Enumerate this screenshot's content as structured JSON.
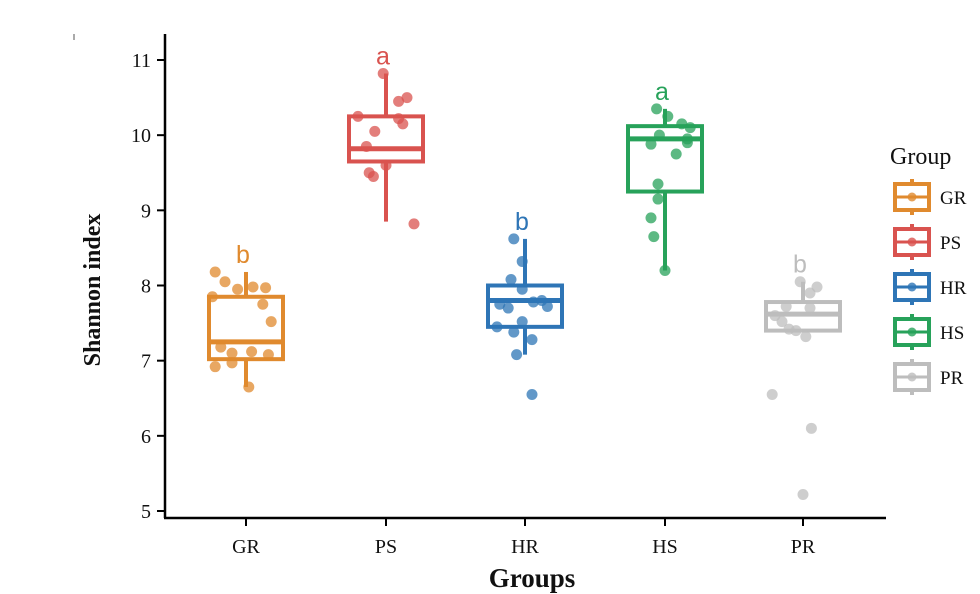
{
  "chart_data": {
    "type": "box",
    "xlabel": "Groups",
    "ylabel": "Shannon index",
    "ylim": [
      4.9,
      11.4
    ],
    "yticks": [
      5,
      6,
      7,
      8,
      9,
      10,
      11
    ],
    "categories": [
      "GR",
      "PS",
      "HR",
      "HS",
      "PR"
    ],
    "legend_title": "Group",
    "legend_position": "right",
    "groups": [
      {
        "name": "GR",
        "color": "#E08A2E",
        "whisker_low": 6.65,
        "q1": 7.02,
        "median": 7.25,
        "q3": 7.85,
        "whisker_high": 8.18,
        "label": "b",
        "points": [
          [
            -0.22,
            8.18
          ],
          [
            -0.15,
            8.05
          ],
          [
            -0.06,
            7.95
          ],
          [
            0.05,
            7.98
          ],
          [
            0.14,
            7.97
          ],
          [
            -0.24,
            7.85
          ],
          [
            0.12,
            7.75
          ],
          [
            0.18,
            7.52
          ],
          [
            -0.18,
            7.18
          ],
          [
            -0.1,
            7.1
          ],
          [
            0.04,
            7.12
          ],
          [
            0.16,
            7.08
          ],
          [
            -0.22,
            6.92
          ],
          [
            -0.1,
            6.97
          ],
          [
            0.02,
            6.65
          ]
        ]
      },
      {
        "name": "PS",
        "color": "#D9534F",
        "whisker_low": 8.85,
        "q1": 9.65,
        "median": 9.82,
        "q3": 10.25,
        "whisker_high": 10.82,
        "label": "a",
        "points": [
          [
            -0.02,
            10.82
          ],
          [
            0.15,
            10.5
          ],
          [
            0.09,
            10.45
          ],
          [
            -0.2,
            10.25
          ],
          [
            0.09,
            10.22
          ],
          [
            0.12,
            10.15
          ],
          [
            -0.08,
            10.05
          ],
          [
            -0.14,
            9.85
          ],
          [
            0.0,
            9.6
          ],
          [
            -0.12,
            9.5
          ],
          [
            -0.09,
            9.45
          ],
          [
            0.2,
            8.82
          ]
        ]
      },
      {
        "name": "HR",
        "color": "#2E75B6",
        "whisker_low": 7.08,
        "q1": 7.45,
        "median": 7.8,
        "q3": 8.0,
        "whisker_high": 8.62,
        "label": "b",
        "points": [
          [
            -0.08,
            8.62
          ],
          [
            -0.02,
            8.32
          ],
          [
            -0.1,
            8.08
          ],
          [
            -0.02,
            7.95
          ],
          [
            0.06,
            7.78
          ],
          [
            0.12,
            7.8
          ],
          [
            -0.18,
            7.75
          ],
          [
            -0.12,
            7.7
          ],
          [
            0.16,
            7.72
          ],
          [
            -0.2,
            7.45
          ],
          [
            -0.02,
            7.52
          ],
          [
            -0.08,
            7.38
          ],
          [
            0.05,
            7.28
          ],
          [
            -0.06,
            7.08
          ],
          [
            0.05,
            6.55
          ]
        ]
      },
      {
        "name": "HS",
        "color": "#27A25A",
        "whisker_low": 8.2,
        "q1": 9.25,
        "median": 9.95,
        "q3": 10.12,
        "whisker_high": 10.35,
        "label": "a",
        "points": [
          [
            -0.06,
            10.35
          ],
          [
            0.02,
            10.25
          ],
          [
            0.12,
            10.15
          ],
          [
            0.18,
            10.1
          ],
          [
            -0.04,
            10.0
          ],
          [
            -0.1,
            9.88
          ],
          [
            0.16,
            9.95
          ],
          [
            0.16,
            9.9
          ],
          [
            0.08,
            9.75
          ],
          [
            -0.05,
            9.35
          ],
          [
            -0.05,
            9.15
          ],
          [
            -0.1,
            8.9
          ],
          [
            -0.08,
            8.65
          ],
          [
            0.0,
            8.2
          ]
        ]
      },
      {
        "name": "PR",
        "color": "#BDBDBD",
        "whisker_low": 7.4,
        "q1": 7.4,
        "median": 7.62,
        "q3": 7.78,
        "whisker_high": 8.05,
        "label": "b",
        "points": [
          [
            -0.02,
            8.05
          ],
          [
            0.1,
            7.98
          ],
          [
            0.05,
            7.9
          ],
          [
            -0.12,
            7.72
          ],
          [
            0.05,
            7.7
          ],
          [
            -0.2,
            7.6
          ],
          [
            -0.15,
            7.52
          ],
          [
            -0.1,
            7.42
          ],
          [
            -0.05,
            7.4
          ],
          [
            0.02,
            7.32
          ],
          [
            -0.22,
            6.55
          ],
          [
            0.06,
            6.1
          ],
          [
            0.0,
            5.22
          ]
        ]
      }
    ]
  }
}
